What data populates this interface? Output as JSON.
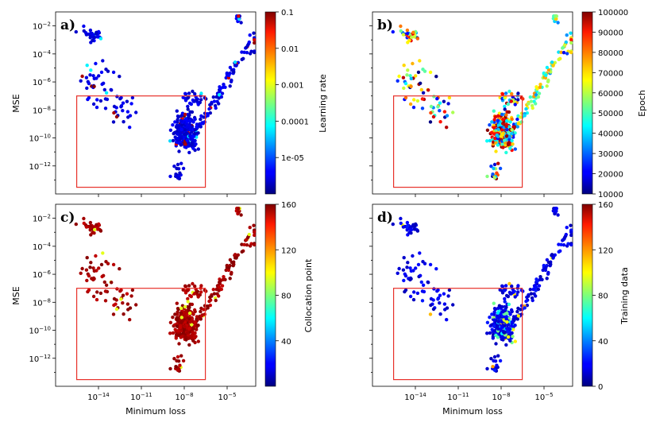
{
  "chart_data": [
    {
      "panel": "a)",
      "type": "scatter",
      "xlabel": "",
      "ylabel": "MSE",
      "xscale": "log",
      "yscale": "log",
      "xlim": [
        1e-17,
        0.001
      ],
      "ylim": [
        1e-14,
        0.1
      ],
      "xticks": [],
      "yticks": [
        "10^-2",
        "10^-4",
        "10^-6",
        "10^-8",
        "10^-10",
        "10^-12"
      ],
      "colorbar": {
        "label": "Learning rate",
        "scale": "log",
        "range": [
          1e-06,
          0.1
        ],
        "ticks": [
          "0.1",
          "0.01",
          "0.001",
          "0.0001",
          "1e-05"
        ]
      },
      "rect_region": {
        "x": [
          3e-16,
          3e-07
        ],
        "y": [
          3e-14,
          1e-07
        ]
      },
      "color_mode": "learning_rate"
    },
    {
      "panel": "b)",
      "type": "scatter",
      "xlabel": "",
      "ylabel": "",
      "xscale": "log",
      "yscale": "log",
      "xlim": [
        1e-17,
        0.001
      ],
      "ylim": [
        1e-14,
        0.1
      ],
      "xticks": [],
      "yticks": [],
      "colorbar": {
        "label": "Epoch",
        "scale": "linear",
        "range": [
          10000,
          100000
        ],
        "ticks": [
          "100000",
          "90000",
          "80000",
          "70000",
          "60000",
          "50000",
          "40000",
          "30000",
          "20000",
          "10000"
        ]
      },
      "rect_region": {
        "x": [
          3e-16,
          3e-07
        ],
        "y": [
          3e-14,
          1e-07
        ]
      },
      "color_mode": "epoch"
    },
    {
      "panel": "c)",
      "type": "scatter",
      "xlabel": "Minimum loss",
      "ylabel": "MSE",
      "xscale": "log",
      "yscale": "log",
      "xlim": [
        1e-17,
        0.001
      ],
      "ylim": [
        1e-14,
        0.1
      ],
      "xticks": [
        "10^-14",
        "10^-11",
        "10^-8",
        "10^-5"
      ],
      "yticks": [
        "10^-2",
        "10^-4",
        "10^-6",
        "10^-8",
        "10^-10",
        "10^-12"
      ],
      "colorbar": {
        "label": "Collocation point",
        "scale": "linear",
        "range": [
          0,
          160
        ],
        "ticks": [
          "160",
          "120",
          "80",
          "40"
        ]
      },
      "rect_region": {
        "x": [
          3e-16,
          3e-07
        ],
        "y": [
          3e-14,
          1e-07
        ]
      },
      "color_mode": "collocation"
    },
    {
      "panel": "d)",
      "type": "scatter",
      "xlabel": "Minimum loss",
      "ylabel": "",
      "xscale": "log",
      "yscale": "log",
      "xlim": [
        1e-17,
        0.001
      ],
      "ylim": [
        1e-14,
        0.1
      ],
      "xticks": [
        "10^-14",
        "10^-11",
        "10^-8",
        "10^-5"
      ],
      "yticks": [],
      "colorbar": {
        "label": "Training data",
        "scale": "linear",
        "range": [
          0,
          160
        ],
        "ticks": [
          "160",
          "120",
          "80",
          "40",
          "0"
        ]
      },
      "rect_region": {
        "x": [
          3e-16,
          3e-07
        ],
        "y": [
          3e-14,
          1e-07
        ]
      },
      "color_mode": "training"
    }
  ],
  "colors": {
    "rect": "#e8312a",
    "colormap": "jet"
  }
}
